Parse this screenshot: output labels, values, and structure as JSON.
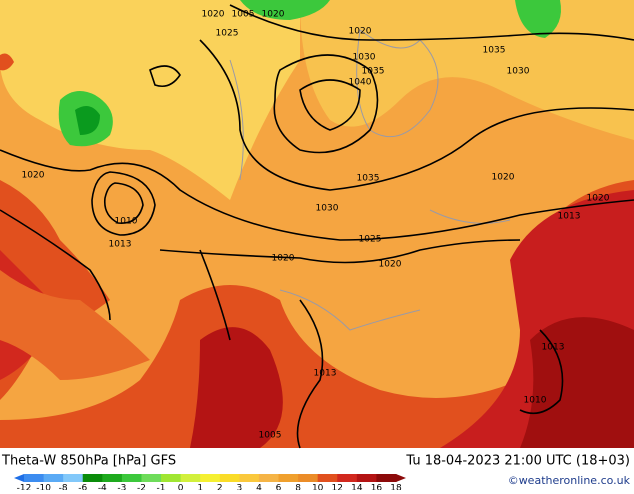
{
  "header": {
    "title": "Theta-W 850hPa [hPa] GFS",
    "datetime": "Tu 18-04-2023 21:00 UTC (18+03)",
    "credit": "©weatheronline.co.uk"
  },
  "isobar_labels": [
    "1020",
    "1005",
    "1020",
    "1025",
    "1020",
    "1035",
    "1030",
    "1035",
    "1030",
    "1040",
    "1020",
    "1035",
    "1020",
    "1020",
    "1030",
    "1010",
    "1013",
    "1025",
    "1013",
    "1020",
    "1020",
    "1013",
    "1013",
    "1010",
    "1005"
  ],
  "legend": [
    {
      "value": -12,
      "color": "#1e6ee6"
    },
    {
      "value": -10,
      "color": "#3c8cf0"
    },
    {
      "value": -8,
      "color": "#5aaaf5"
    },
    {
      "value": -6,
      "color": "#82c8fa"
    },
    {
      "value": -4,
      "color": "#0a8c0a"
    },
    {
      "value": -3,
      "color": "#1eaa1e"
    },
    {
      "value": -2,
      "color": "#3cc83c"
    },
    {
      "value": -1,
      "color": "#6edc5a"
    },
    {
      "value": 0,
      "color": "#a0e632"
    },
    {
      "value": 1,
      "color": "#d2f03c"
    },
    {
      "value": 2,
      "color": "#f5f032"
    },
    {
      "value": 3,
      "color": "#fadc28"
    },
    {
      "value": 4,
      "color": "#fac83c"
    },
    {
      "value": 6,
      "color": "#f5b446"
    },
    {
      "value": 8,
      "color": "#f0a02d"
    },
    {
      "value": 10,
      "color": "#eb8c28"
    },
    {
      "value": 12,
      "color": "#e1501e"
    },
    {
      "value": 14,
      "color": "#d2281e"
    },
    {
      "value": 16,
      "color": "#b41414"
    },
    {
      "value": 18,
      "color": "#8c0a0a"
    }
  ]
}
